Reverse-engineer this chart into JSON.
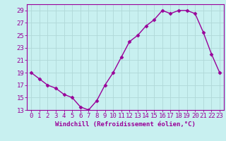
{
  "x": [
    0,
    1,
    2,
    3,
    4,
    5,
    6,
    7,
    8,
    9,
    10,
    11,
    12,
    13,
    14,
    15,
    16,
    17,
    18,
    19,
    20,
    21,
    22,
    23
  ],
  "y": [
    19,
    18,
    17,
    16.5,
    15.5,
    15,
    13.5,
    13,
    14.5,
    17,
    19,
    21.5,
    24,
    25,
    26.5,
    27.5,
    29,
    28.5,
    29,
    29,
    28.5,
    25.5,
    22,
    19
  ],
  "line_color": "#990099",
  "bg_color": "#c8f0f0",
  "grid_color": "#b0d8d8",
  "title": "",
  "xlabel": "Windchill (Refroidissement éolien,°C)",
  "ylim": [
    13,
    30
  ],
  "xlim": [
    -0.5,
    23.5
  ],
  "yticks": [
    13,
    15,
    17,
    19,
    21,
    23,
    25,
    27,
    29
  ],
  "xticks": [
    0,
    1,
    2,
    3,
    4,
    5,
    6,
    7,
    8,
    9,
    10,
    11,
    12,
    13,
    14,
    15,
    16,
    17,
    18,
    19,
    20,
    21,
    22,
    23
  ],
  "marker": "D",
  "markersize": 2.5,
  "linewidth": 1.0,
  "xlabel_fontsize": 6.5,
  "tick_fontsize": 6.5
}
